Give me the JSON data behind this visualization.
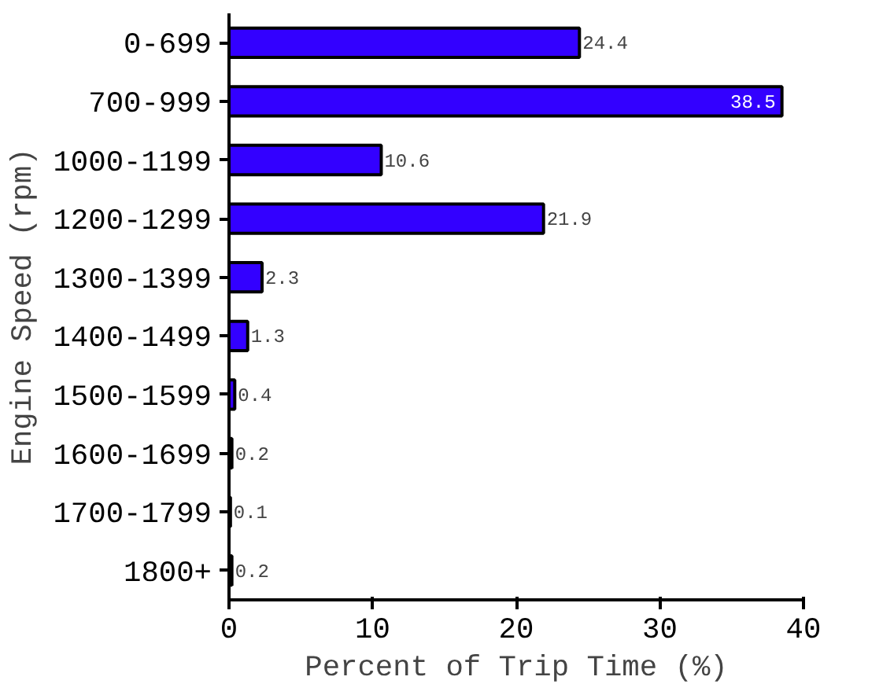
{
  "chart_data": {
    "type": "bar",
    "orientation": "horizontal",
    "xlabel": "Percent of Trip Time (%)",
    "ylabel": "Engine Speed (rpm)",
    "categories": [
      "0-699",
      "700-999",
      "1000-1199",
      "1200-1299",
      "1300-1399",
      "1400-1499",
      "1500-1599",
      "1600-1699",
      "1700-1799",
      "1800+"
    ],
    "values": [
      24.4,
      38.5,
      10.6,
      21.9,
      2.3,
      1.3,
      0.4,
      0.2,
      0.1,
      0.2
    ],
    "color": "#3300ff",
    "xlim": [
      0,
      40
    ],
    "xticks": [
      0,
      10,
      20,
      30,
      40
    ],
    "data_labels": true,
    "grid": false
  }
}
